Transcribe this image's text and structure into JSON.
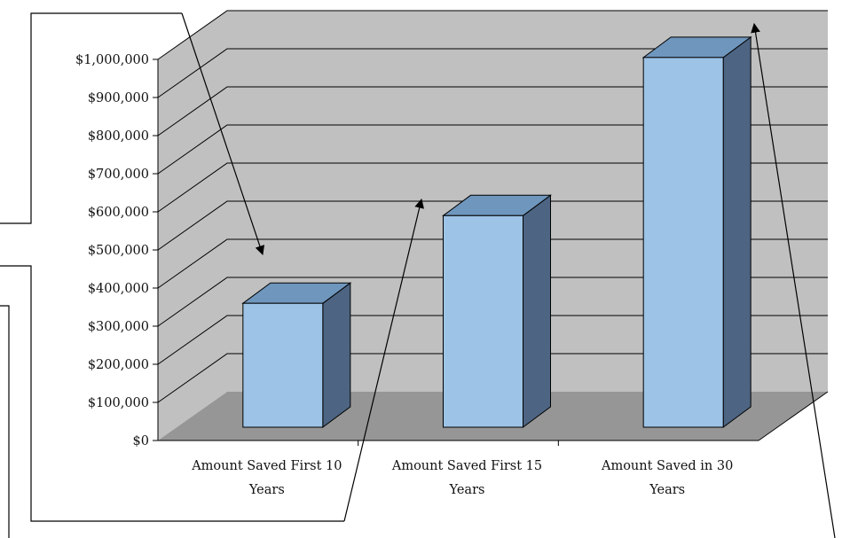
{
  "chart_data": {
    "type": "bar",
    "style": "3d-column",
    "categories": [
      "Amount Saved First 10 Years",
      "Amount Saved First 15 Years",
      "Amount Saved in 30 Years"
    ],
    "category_lines": [
      [
        "Amount Saved First 10",
        "Years"
      ],
      [
        "Amount Saved First 15",
        "Years"
      ],
      [
        "Amount Saved in 30",
        "Years"
      ]
    ],
    "values": [
      360000,
      590000,
      1005000
    ],
    "ylim": [
      0,
      1000000
    ],
    "yticks": [
      0,
      100000,
      200000,
      300000,
      400000,
      500000,
      600000,
      700000,
      800000,
      900000,
      1000000
    ],
    "ytick_labels": [
      "$0",
      "$100,000",
      "$200,000",
      "$300,000",
      "$400,000",
      "$500,000",
      "$600,000",
      "$700,000",
      "$800,000",
      "$900,000",
      "$1,000,000"
    ],
    "grid": true,
    "legend": "none",
    "colors": {
      "bar_front": "#9dc3e6",
      "bar_top": "#6f96bd",
      "bar_side": "#4d6583",
      "back_wall": "#c0c0c0",
      "floor": "#969696",
      "gridline": "#000000"
    }
  }
}
